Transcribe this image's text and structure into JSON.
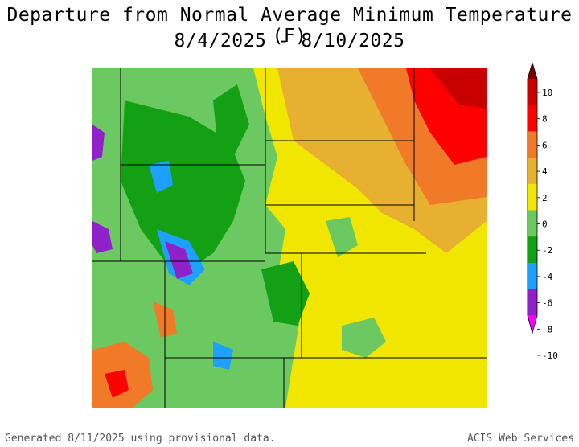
{
  "title_line1": "Departure from Normal Average Minimum Temperature (F)",
  "title_line2": "8/4/2025 - 8/10/2025",
  "legend": {
    "ticks": [
      "10",
      "8",
      "6",
      "4",
      "2",
      "0",
      "-2",
      "-4",
      "-6",
      "-8",
      "-10"
    ],
    "colors": [
      "#7a0000",
      "#c80000",
      "#ff0000",
      "#f07a28",
      "#e8b030",
      "#f0e600",
      "#6cc860",
      "#14a014",
      "#1ea0ff",
      "#9020c8",
      "#ff00ff"
    ]
  },
  "footer_left": "Generated 8/11/2025 using provisional data.",
  "footer_right": "ACIS Web Services"
}
